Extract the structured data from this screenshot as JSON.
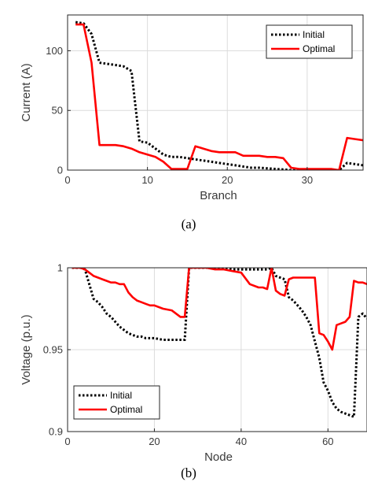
{
  "chart_data": [
    {
      "type": "line",
      "caption": "(a)",
      "xlabel": "Branch",
      "ylabel": "Current (A)",
      "xlim": [
        0,
        37
      ],
      "ylim": [
        0,
        130
      ],
      "xticks": [
        0,
        10,
        20,
        30
      ],
      "yticks": [
        0,
        50,
        100
      ],
      "grid": true,
      "legend_position": "top-right",
      "colors": {
        "Initial": "#000000",
        "Optimal": "#ff0000"
      },
      "series": [
        {
          "name": "Initial",
          "style": "dotted",
          "x": [
            1,
            2,
            3,
            4,
            5,
            6,
            7,
            8,
            9,
            10,
            11,
            12,
            13,
            14,
            15,
            16,
            17,
            18,
            19,
            20,
            21,
            22,
            23,
            24,
            25,
            26,
            27,
            28,
            29,
            30,
            31,
            32,
            33,
            34,
            35,
            36,
            37
          ],
          "values": [
            124,
            123,
            114,
            90,
            89,
            88,
            87,
            83,
            24,
            23,
            18,
            13,
            11,
            11,
            10,
            9,
            8,
            7,
            6,
            5,
            4,
            3,
            2,
            2,
            1.5,
            1,
            0.5,
            0,
            0,
            0,
            0,
            0,
            0,
            0,
            6,
            5,
            4
          ]
        },
        {
          "name": "Optimal",
          "style": "solid",
          "x": [
            1,
            2,
            3,
            4,
            5,
            6,
            7,
            8,
            9,
            10,
            11,
            12,
            13,
            14,
            15,
            16,
            17,
            18,
            19,
            20,
            21,
            22,
            23,
            24,
            25,
            26,
            27,
            28,
            29,
            30,
            31,
            32,
            33,
            34,
            35,
            36,
            37
          ],
          "values": [
            122,
            122,
            90,
            21,
            21,
            21,
            20,
            18,
            15,
            13,
            11,
            7,
            1,
            1,
            1,
            20,
            18,
            16,
            15,
            15,
            15,
            12,
            12,
            12,
            11,
            11,
            10,
            2,
            1,
            1,
            1,
            1,
            1,
            0,
            27,
            26,
            25
          ]
        }
      ]
    },
    {
      "type": "line",
      "caption": "(b)",
      "xlabel": "Node",
      "ylabel": "Voltage (p.u.)",
      "xlim": [
        0,
        69
      ],
      "ylim": [
        0.9,
        1.0
      ],
      "xticks": [
        0,
        20,
        40,
        60
      ],
      "yticks": [
        0.9,
        0.95,
        1
      ],
      "grid": true,
      "legend_position": "bottom-left",
      "colors": {
        "Initial": "#000000",
        "Optimal": "#ff0000"
      },
      "series": [
        {
          "name": "Initial",
          "style": "dotted",
          "x": [
            1,
            2,
            3,
            4,
            5,
            6,
            7,
            8,
            9,
            10,
            11,
            12,
            13,
            14,
            15,
            16,
            17,
            18,
            19,
            20,
            22,
            24,
            26,
            27,
            28,
            29,
            30,
            32,
            34,
            36,
            38,
            40,
            42,
            44,
            46,
            47,
            48,
            49,
            50,
            51,
            52,
            53,
            54,
            55,
            56,
            57,
            58,
            59,
            60,
            61,
            62,
            63,
            64,
            65,
            66,
            67,
            68,
            69
          ],
          "values": [
            1.0,
            1.0,
            1.0,
            0.999,
            0.99,
            0.981,
            0.979,
            0.976,
            0.972,
            0.97,
            0.967,
            0.964,
            0.962,
            0.96,
            0.959,
            0.958,
            0.958,
            0.957,
            0.957,
            0.957,
            0.956,
            0.956,
            0.956,
            0.956,
            1.0,
            1.0,
            1.0,
            1.0,
            1.0,
            1.0,
            0.999,
            0.999,
            0.999,
            0.999,
            0.999,
            1.0,
            0.995,
            0.994,
            0.993,
            0.982,
            0.98,
            0.977,
            0.974,
            0.97,
            0.965,
            0.955,
            0.945,
            0.93,
            0.925,
            0.918,
            0.914,
            0.912,
            0.911,
            0.91,
            0.909,
            0.97,
            0.972,
            0.969
          ]
        },
        {
          "name": "Optimal",
          "style": "solid",
          "x": [
            1,
            2,
            3,
            4,
            5,
            6,
            7,
            8,
            9,
            10,
            11,
            12,
            13,
            14,
            15,
            16,
            17,
            18,
            19,
            20,
            22,
            24,
            26,
            27,
            28,
            29,
            30,
            32,
            34,
            36,
            38,
            40,
            42,
            44,
            45,
            46,
            47,
            48,
            49,
            50,
            51,
            52,
            54,
            56,
            57,
            58,
            59,
            60,
            61,
            62,
            63,
            64,
            65,
            66,
            67,
            68,
            69
          ],
          "values": [
            1.0,
            1.0,
            1.0,
            0.999,
            0.997,
            0.995,
            0.994,
            0.993,
            0.992,
            0.991,
            0.991,
            0.99,
            0.99,
            0.985,
            0.982,
            0.98,
            0.979,
            0.978,
            0.977,
            0.977,
            0.975,
            0.974,
            0.97,
            0.97,
            1.0,
            1.0,
            1.0,
            1.0,
            0.999,
            0.999,
            0.998,
            0.997,
            0.99,
            0.988,
            0.988,
            0.987,
            1.0,
            0.986,
            0.984,
            0.983,
            0.993,
            0.994,
            0.994,
            0.994,
            0.994,
            0.96,
            0.959,
            0.955,
            0.95,
            0.965,
            0.966,
            0.967,
            0.97,
            0.992,
            0.991,
            0.991,
            0.99
          ]
        }
      ]
    }
  ]
}
